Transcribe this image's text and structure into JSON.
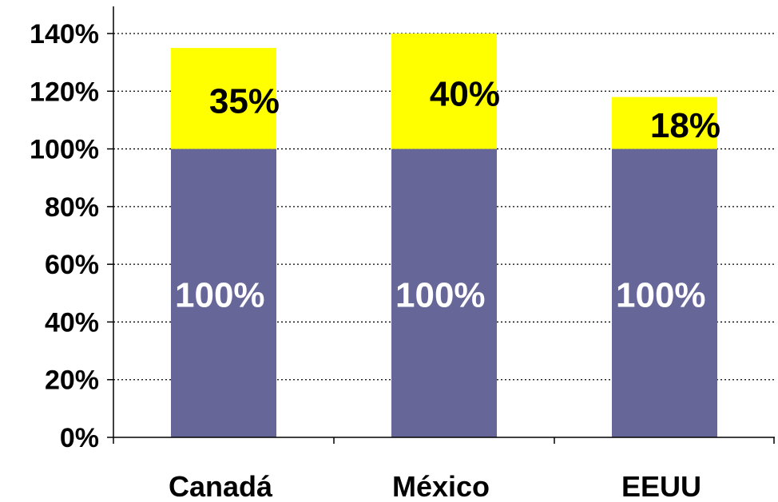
{
  "chart_data": {
    "type": "bar",
    "stacked": true,
    "categories": [
      "Canadá",
      "México",
      "EEUU"
    ],
    "series": [
      {
        "values": [
          100,
          100,
          100
        ],
        "labels": [
          "100%",
          "100%",
          "100%"
        ],
        "color": "#666699",
        "label_color": "#ffffff"
      },
      {
        "values": [
          35,
          40,
          18
        ],
        "labels": [
          "35%",
          "40%",
          "18%"
        ],
        "color": "#ffff00",
        "label_color": "#000000"
      }
    ],
    "y_ticks": [
      0,
      20,
      40,
      60,
      80,
      100,
      120,
      140
    ],
    "y_tick_labels": [
      "0%",
      "20%",
      "40%",
      "60%",
      "80%",
      "100%",
      "120%",
      "140%"
    ],
    "ylim": [
      0,
      140
    ],
    "grid": true,
    "grid_style": "dotted",
    "legend": "none"
  }
}
